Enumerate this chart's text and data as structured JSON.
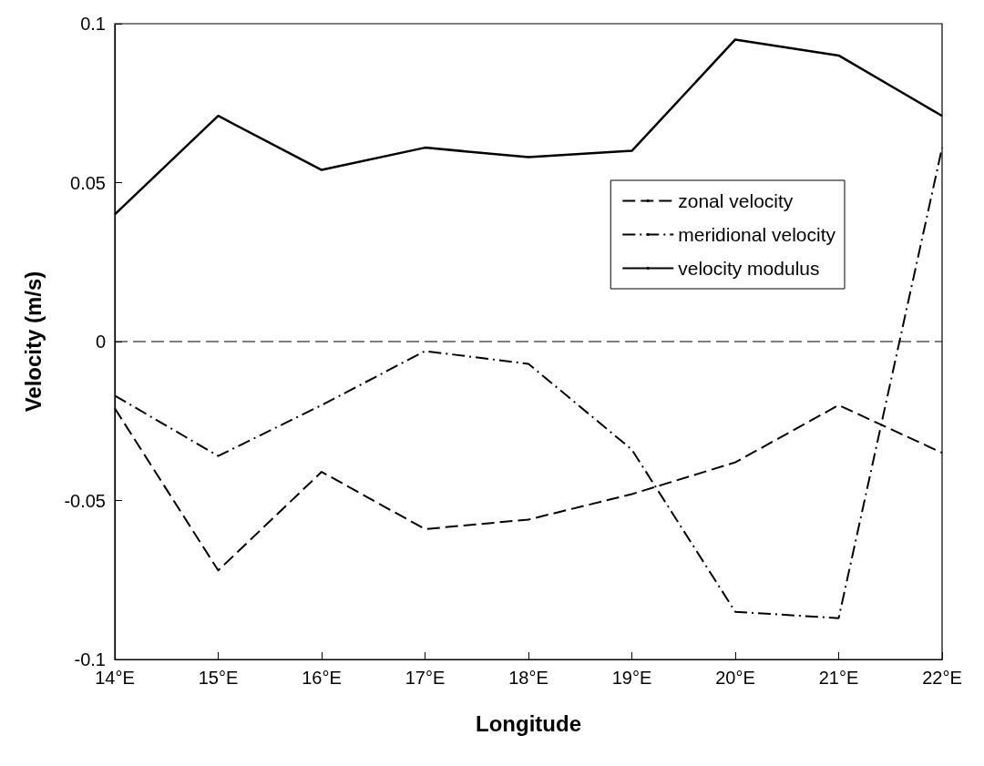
{
  "chart_data": {
    "type": "line",
    "xlabel": "Longitude",
    "ylabel": "Velocity (m/s)",
    "x": [
      14,
      15,
      16,
      17,
      18,
      19,
      20,
      21,
      22
    ],
    "series": [
      {
        "name": "zonal velocity",
        "color": "#000000",
        "line_style": "dashed",
        "values": [
          -0.021,
          -0.072,
          -0.041,
          -0.059,
          -0.056,
          -0.048,
          -0.038,
          -0.02,
          -0.035
        ]
      },
      {
        "name": "meridional velocity",
        "color": "#000000",
        "line_style": "dashdot",
        "values": [
          -0.017,
          -0.036,
          -0.02,
          -0.003,
          -0.007,
          -0.034,
          -0.085,
          -0.087,
          0.061
        ]
      },
      {
        "name": "velocity modulus",
        "color": "#000000",
        "line_style": "solid",
        "values": [
          0.04,
          0.071,
          0.054,
          0.061,
          0.058,
          0.06,
          0.095,
          0.09,
          0.071
        ]
      }
    ],
    "xlim": [
      14,
      22
    ],
    "xticks": [
      {
        "value": 14,
        "label": "14°E"
      },
      {
        "value": 15,
        "label": "15°E"
      },
      {
        "value": 16,
        "label": "16°E"
      },
      {
        "value": 17,
        "label": "17°E"
      },
      {
        "value": 18,
        "label": "18°E"
      },
      {
        "value": 19,
        "label": "19°E"
      },
      {
        "value": 20,
        "label": "20°E"
      },
      {
        "value": 21,
        "label": "21°E"
      },
      {
        "value": 22,
        "label": "22°E"
      }
    ],
    "ylim": [
      -0.1,
      0.1
    ],
    "yticks": [
      -0.1,
      -0.05,
      0,
      0.05,
      0.1
    ],
    "ref_lines": [
      {
        "axis": "y",
        "value": 0,
        "label": null,
        "line_style": "dashed",
        "color": "#000000"
      }
    ],
    "legend": "top right",
    "grid": false,
    "marker": "none"
  }
}
